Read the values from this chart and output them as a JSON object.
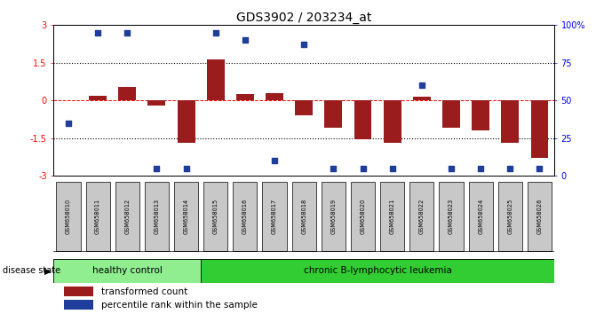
{
  "title": "GDS3902 / 203234_at",
  "samples": [
    "GSM658010",
    "GSM658011",
    "GSM658012",
    "GSM658013",
    "GSM658014",
    "GSM658015",
    "GSM658016",
    "GSM658017",
    "GSM658018",
    "GSM658019",
    "GSM658020",
    "GSM658021",
    "GSM658022",
    "GSM658023",
    "GSM658024",
    "GSM658025",
    "GSM658026"
  ],
  "transformed_count": [
    0.0,
    0.2,
    0.55,
    -0.2,
    -1.7,
    1.65,
    0.25,
    0.3,
    -0.6,
    -1.1,
    -1.55,
    -1.7,
    0.15,
    -1.1,
    -1.2,
    -1.7,
    -2.3
  ],
  "percentile_rank": [
    35,
    95,
    95,
    5,
    5,
    95,
    90,
    10,
    87,
    5,
    5,
    5,
    60,
    5,
    5,
    5,
    5
  ],
  "n_healthy": 5,
  "n_cll": 12,
  "ylim_left": [
    -3,
    3
  ],
  "ylim_right": [
    0,
    100
  ],
  "yticks_left": [
    -3,
    -1.5,
    0,
    1.5,
    3
  ],
  "ytick_labels_left": [
    "-3",
    "-1.5",
    "0",
    "1.5",
    "3"
  ],
  "yticks_right": [
    0,
    25,
    50,
    75,
    100
  ],
  "ytick_labels_right": [
    "0",
    "25",
    "50",
    "75",
    "100%"
  ],
  "hline_dotted": [
    1.5,
    -1.5
  ],
  "bar_color": "#9B1C1C",
  "dot_color": "#1F3D9B",
  "healthy_color": "#90EE90",
  "cll_color": "#32CD32",
  "label_bg_color": "#C8C8C8",
  "disease_state_label": "disease state",
  "healthy_label": "healthy control",
  "cll_label": "chronic B-lymphocytic leukemia",
  "legend_bar_label": "transformed count",
  "legend_dot_label": "percentile rank within the sample"
}
